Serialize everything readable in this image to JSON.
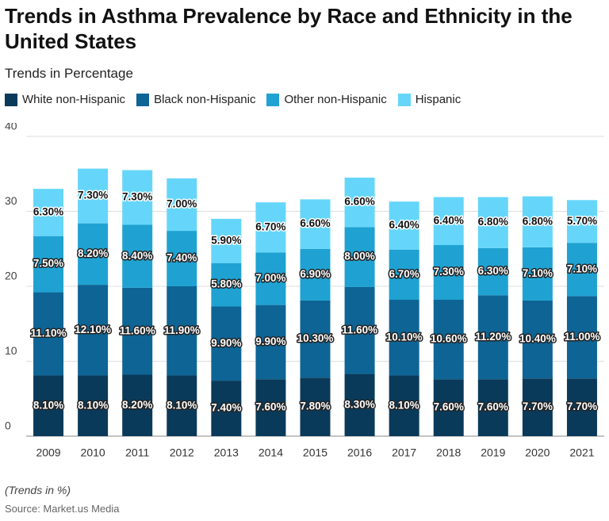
{
  "chart_data": {
    "type": "stacked_bar",
    "title": "Trends in Asthma Prevalence by Race and Ethnicity in the United States",
    "subtitle": "Trends in Percentage",
    "note": "(Trends in %)",
    "source": "Source: Market.us Media",
    "categories": [
      "2009",
      "2010",
      "2011",
      "2012",
      "2013",
      "2014",
      "2015",
      "2016",
      "2017",
      "2018",
      "2019",
      "2020",
      "2021"
    ],
    "series": [
      {
        "name": "White non-Hispanic",
        "color": "#0a3a5a",
        "values": [
          8.1,
          8.1,
          8.2,
          8.1,
          7.4,
          7.6,
          7.8,
          8.3,
          8.1,
          7.6,
          7.6,
          7.7,
          7.7
        ],
        "value_labels": [
          "8.10%",
          "8.10%",
          "8.20%",
          "8.10%",
          "7.40%",
          "7.60%",
          "7.80%",
          "8.30%",
          "8.10%",
          "7.60%",
          "7.60%",
          "7.70%",
          "7.70%"
        ]
      },
      {
        "name": "Black non-Hispanic",
        "color": "#0e6494",
        "values": [
          11.1,
          12.1,
          11.6,
          11.9,
          9.9,
          9.9,
          10.3,
          11.6,
          10.1,
          10.6,
          11.2,
          10.4,
          11.0
        ],
        "value_labels": [
          "11.10%",
          "12.10%",
          "11.60%",
          "11.90%",
          "9.90%",
          "9.90%",
          "10.30%",
          "11.60%",
          "10.10%",
          "10.60%",
          "11.20%",
          "10.40%",
          "11.00%"
        ]
      },
      {
        "name": "Other non-Hispanic",
        "color": "#1fa2d2",
        "values": [
          7.5,
          8.2,
          8.4,
          7.4,
          5.8,
          7.0,
          6.9,
          8.0,
          6.7,
          7.3,
          6.3,
          7.1,
          7.1
        ],
        "value_labels": [
          "7.50%",
          "8.20%",
          "8.40%",
          "7.40%",
          "5.80%",
          "7.00%",
          "6.90%",
          "8.00%",
          "6.70%",
          "7.30%",
          "6.30%",
          "7.10%",
          "7.10%"
        ]
      },
      {
        "name": "Hispanic",
        "color": "#65d6fa",
        "values": [
          6.3,
          7.3,
          7.3,
          7.0,
          5.9,
          6.7,
          6.6,
          6.6,
          6.4,
          6.4,
          6.8,
          6.8,
          5.7
        ],
        "value_labels": [
          "6.30%",
          "7.30%",
          "7.30%",
          "7.00%",
          "5.90%",
          "6.70%",
          "6.60%",
          "6.60%",
          "6.40%",
          "6.40%",
          "6.80%",
          "6.80%",
          "5.70%"
        ]
      }
    ],
    "ylim": [
      0,
      40
    ],
    "yticks": [
      0,
      10,
      20,
      30,
      40
    ],
    "grid": true
  }
}
